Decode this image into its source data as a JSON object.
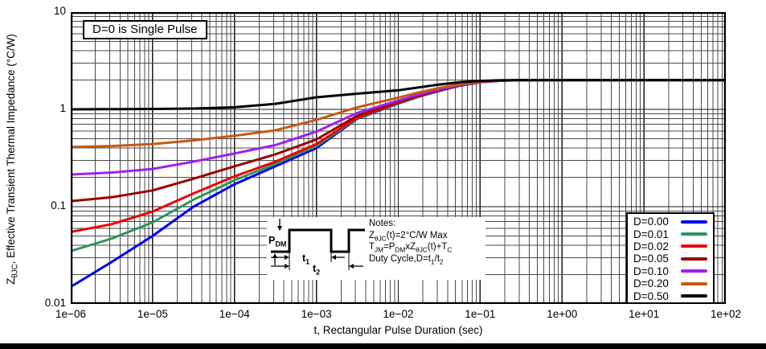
{
  "figure": {
    "annotation": "D=0 is Single Pulse",
    "xlabel": "t, Rectangular Pulse Duration (sec)",
    "ylabel_parts": [
      [
        "n",
        "Z"
      ],
      [
        "s",
        "θJC"
      ],
      [
        "n",
        ", Effective Transient Thermal Impedance (°C/W)"
      ]
    ]
  },
  "inset": {
    "pdm_parts": [
      [
        "n",
        "P"
      ],
      [
        "s",
        "DM"
      ]
    ],
    "t1_parts": [
      [
        "n",
        "t"
      ],
      [
        "s",
        "1"
      ]
    ],
    "t2_parts": [
      [
        "n",
        "t"
      ],
      [
        "s",
        "2"
      ]
    ],
    "notes_title": "Notes:",
    "note_lines_rich": [
      [
        [
          "n",
          "Z"
        ],
        [
          "s",
          "θJC"
        ],
        [
          "n",
          "(t)=2°C/W Max"
        ]
      ],
      [
        [
          "n",
          "T"
        ],
        [
          "s",
          "JM"
        ],
        [
          "n",
          "=P"
        ],
        [
          "s",
          "DM"
        ],
        [
          "n",
          "xZ"
        ],
        [
          "s",
          "θJC"
        ],
        [
          "n",
          "(t)+T"
        ],
        [
          "s",
          "C"
        ]
      ],
      [
        [
          "n",
          "Duty Cycle,D=t"
        ],
        [
          "s",
          "1"
        ],
        [
          "n",
          "/t"
        ],
        [
          "s",
          "2"
        ]
      ]
    ]
  },
  "chart_data": {
    "type": "line",
    "title": "",
    "xlabel": "t, Rectangular Pulse Duration (sec)",
    "ylabel": "ZθJC, Effective Transient Thermal Impedance (°C/W)",
    "xscale": "log",
    "yscale": "log",
    "xlim": [
      1e-06,
      100
    ],
    "ylim": [
      0.01,
      10
    ],
    "grid": "major+minor both axes",
    "legend_position": "lower right",
    "annotation": "D=0 is Single Pulse",
    "steady_state_max_C_per_W": 2,
    "x_ticks": [
      {
        "v": 1e-06,
        "label": "1e−06"
      },
      {
        "v": 1e-05,
        "label": "1e−05"
      },
      {
        "v": 0.0001,
        "label": "1e−04"
      },
      {
        "v": 0.001,
        "label": "1e−03"
      },
      {
        "v": 0.01,
        "label": "1e−02"
      },
      {
        "v": 0.1,
        "label": "1e−01"
      },
      {
        "v": 1,
        "label": "1e+00"
      },
      {
        "v": 10,
        "label": "1e+01"
      },
      {
        "v": 100,
        "label": "1e+02"
      }
    ],
    "y_ticks": [
      {
        "v": 10,
        "label": "10"
      },
      {
        "v": 1,
        "label": "1"
      },
      {
        "v": 0.1,
        "label": "0.1"
      },
      {
        "v": 0.01,
        "label": "0.01"
      }
    ],
    "x": [
      1e-06,
      3.16e-06,
      1e-05,
      3.16e-05,
      0.0001,
      0.000316,
      0.001,
      0.00316,
      0.01,
      0.0178,
      0.0316,
      0.0562,
      0.1,
      0.178,
      0.316,
      1,
      10,
      100
    ],
    "series": [
      {
        "name": "D=0.00",
        "color": "#0000EE",
        "values": [
          0.015,
          0.027,
          0.05,
          0.1,
          0.17,
          0.26,
          0.4,
          0.8,
          1.15,
          1.35,
          1.55,
          1.75,
          1.9,
          1.97,
          2.0,
          2.0,
          2.0,
          2.0
        ]
      },
      {
        "name": "D=0.01",
        "color": "#2E9658",
        "values": [
          0.035,
          0.047,
          0.069,
          0.118,
          0.187,
          0.275,
          0.42,
          0.81,
          1.16,
          1.36,
          1.56,
          1.76,
          1.9,
          1.97,
          2.0,
          2.0,
          2.0,
          2.0
        ]
      },
      {
        "name": "D=0.02",
        "color": "#EE0000",
        "values": [
          0.055,
          0.066,
          0.089,
          0.137,
          0.205,
          0.29,
          0.44,
          0.82,
          1.17,
          1.37,
          1.57,
          1.76,
          1.91,
          1.97,
          2.0,
          2.0,
          2.0,
          2.0
        ]
      },
      {
        "name": "D=0.05",
        "color": "#990000",
        "values": [
          0.114,
          0.125,
          0.147,
          0.194,
          0.26,
          0.345,
          0.49,
          0.86,
          1.19,
          1.39,
          1.58,
          1.77,
          1.91,
          1.97,
          2.0,
          2.0,
          2.0,
          2.0
        ]
      },
      {
        "name": "D=0.10",
        "color": "#A020F0",
        "values": [
          0.214,
          0.224,
          0.244,
          0.29,
          0.352,
          0.43,
          0.59,
          0.92,
          1.23,
          1.42,
          1.6,
          1.78,
          1.92,
          1.98,
          2.0,
          2.0,
          2.0,
          2.0
        ]
      },
      {
        "name": "D=0.20",
        "color": "#C55A11",
        "values": [
          0.41,
          0.42,
          0.44,
          0.48,
          0.535,
          0.61,
          0.78,
          1.05,
          1.32,
          1.49,
          1.66,
          1.81,
          1.93,
          1.98,
          2.0,
          2.0,
          2.0,
          2.0
        ]
      },
      {
        "name": "D=0.50",
        "color": "#000000",
        "values": [
          1.0,
          1.005,
          1.01,
          1.02,
          1.05,
          1.14,
          1.33,
          1.45,
          1.57,
          1.68,
          1.8,
          1.9,
          1.96,
          1.99,
          2.0,
          2.0,
          2.0,
          2.0
        ]
      }
    ]
  }
}
